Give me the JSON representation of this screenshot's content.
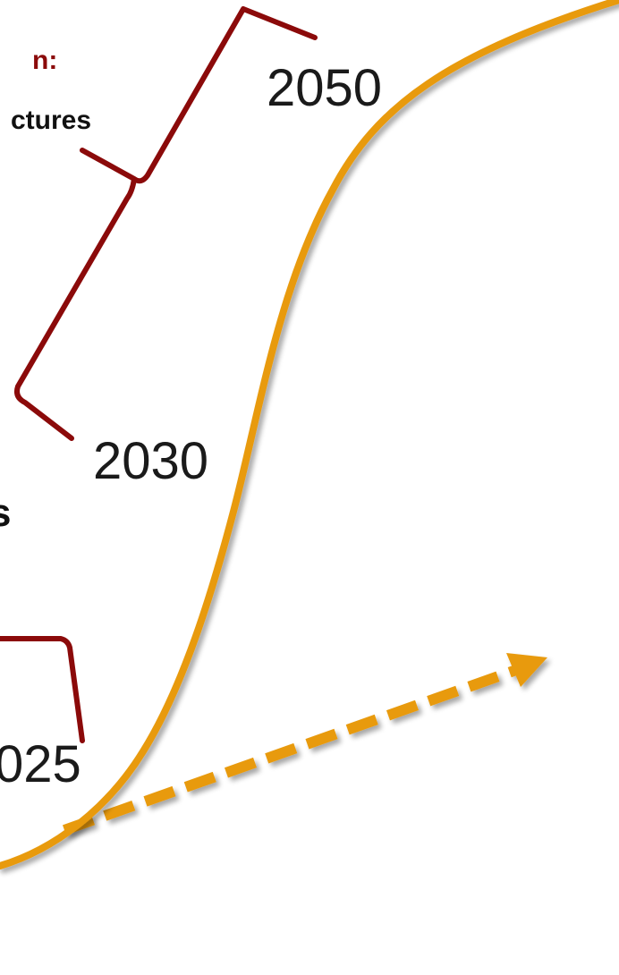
{
  "labels": {
    "fragment_top_red": "n:",
    "fragment_top_dark": "ctures",
    "fragment_mid": "s"
  },
  "years": {
    "y2050": "2050",
    "y2030": "2030",
    "y2025": "025"
  },
  "colors": {
    "curve": "#E89A0C",
    "bracket": "#8B0A0A",
    "arrow": "#E89A0C",
    "label_red": "#8B0A0A"
  }
}
